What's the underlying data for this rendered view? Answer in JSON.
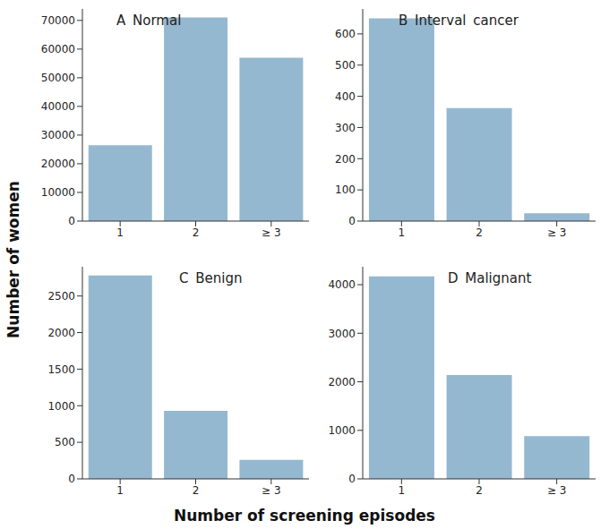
{
  "x_label": "Number of screening episodes",
  "y_label": "Number of women",
  "chart_data": [
    {
      "type": "bar",
      "title": "A Normal",
      "categories": [
        "1",
        "2",
        "≥ 3"
      ],
      "values": [
        26500,
        71000,
        57000
      ],
      "color": "#95b8d1",
      "ylim": [
        0,
        74000
      ],
      "yticks": [
        0,
        10000,
        20000,
        30000,
        40000,
        50000,
        60000,
        70000
      ],
      "grid": false
    },
    {
      "type": "bar",
      "title": "B Interval cancer",
      "categories": [
        "1",
        "2",
        "≥ 3"
      ],
      "values": [
        650,
        362,
        25
      ],
      "color": "#95b8d1",
      "ylim": [
        0,
        680
      ],
      "yticks": [
        0,
        100,
        200,
        300,
        400,
        500,
        600
      ],
      "grid": false
    },
    {
      "type": "bar",
      "title": "C Benign",
      "categories": [
        "1",
        "2",
        "≥ 3"
      ],
      "values": [
        2780,
        930,
        260
      ],
      "color": "#95b8d1",
      "ylim": [
        0,
        2900
      ],
      "yticks": [
        0,
        500,
        1000,
        1500,
        2000,
        2500
      ],
      "grid": false
    },
    {
      "type": "bar",
      "title": "D Malignant",
      "categories": [
        "1",
        "2",
        "≥ 3"
      ],
      "values": [
        4170,
        2140,
        880
      ],
      "color": "#95b8d1",
      "ylim": [
        0,
        4370
      ],
      "yticks": [
        0,
        1000,
        2000,
        3000,
        4000
      ],
      "grid": false
    }
  ]
}
